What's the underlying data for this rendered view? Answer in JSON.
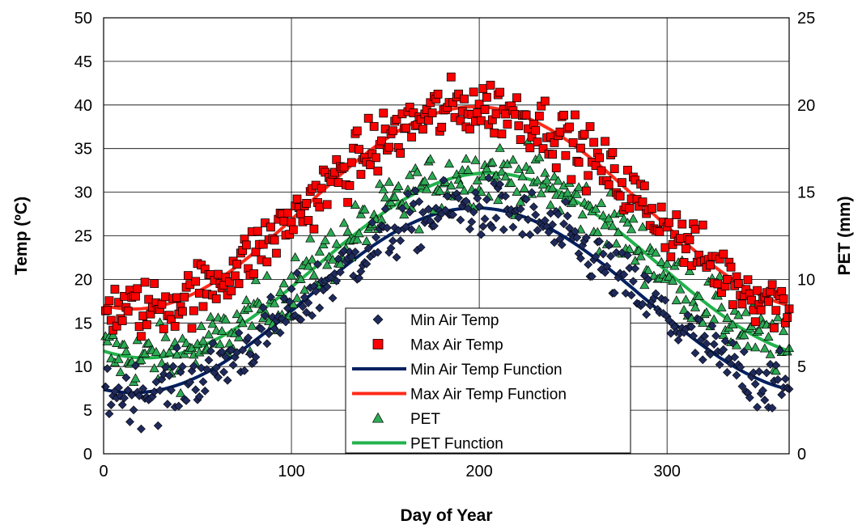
{
  "chart_data": {
    "type": "scatter",
    "title": "",
    "xlabel": "Day of Year",
    "ylabel_left": "Temp (ºC)",
    "ylabel_right": "PET (mm)",
    "xlim": [
      0,
      365
    ],
    "ylim_left": [
      0,
      50
    ],
    "ylim_right": [
      0,
      25
    ],
    "x_ticks": [
      0,
      100,
      200,
      300
    ],
    "y_left_ticks": [
      0,
      5,
      10,
      15,
      20,
      25,
      30,
      35,
      40,
      45,
      50
    ],
    "y_right_ticks": [
      0,
      5,
      10,
      15,
      20,
      25
    ],
    "grid": true,
    "legend_position": "center-bottom",
    "series": [
      {
        "name": "Min Air Temp",
        "kind": "scatter",
        "marker": "diamond",
        "color": "#1f2a5c",
        "axis": "left",
        "function": {
          "mean": 17.6,
          "amplitude": 10.6,
          "peak_day": 198
        }
      },
      {
        "name": "Max Air Temp",
        "kind": "scatter",
        "marker": "square",
        "color": "#ff0000",
        "axis": "left",
        "function": {
          "mean": 28.2,
          "amplitude": 11.6,
          "peak_day": 198
        }
      },
      {
        "name": "Min Air Temp Function",
        "kind": "line",
        "color": "#002060",
        "axis": "left",
        "function": {
          "mean": 17.6,
          "amplitude": 10.6,
          "peak_day": 198
        }
      },
      {
        "name": "Max Air Temp Function",
        "kind": "line",
        "color": "#ff2a1a",
        "axis": "left",
        "function": {
          "mean": 28.2,
          "amplitude": 11.6,
          "peak_day": 198
        }
      },
      {
        "name": "PET",
        "kind": "scatter",
        "marker": "triangle",
        "color": "#2daa55",
        "axis": "right",
        "function": {
          "mean": 10.8,
          "amplitude": 5.3,
          "peak_day": 205
        }
      },
      {
        "name": "PET Function",
        "kind": "line",
        "color": "#22b24c",
        "axis": "right",
        "function": {
          "mean": 10.8,
          "amplitude": 5.3,
          "peak_day": 205
        }
      }
    ]
  }
}
